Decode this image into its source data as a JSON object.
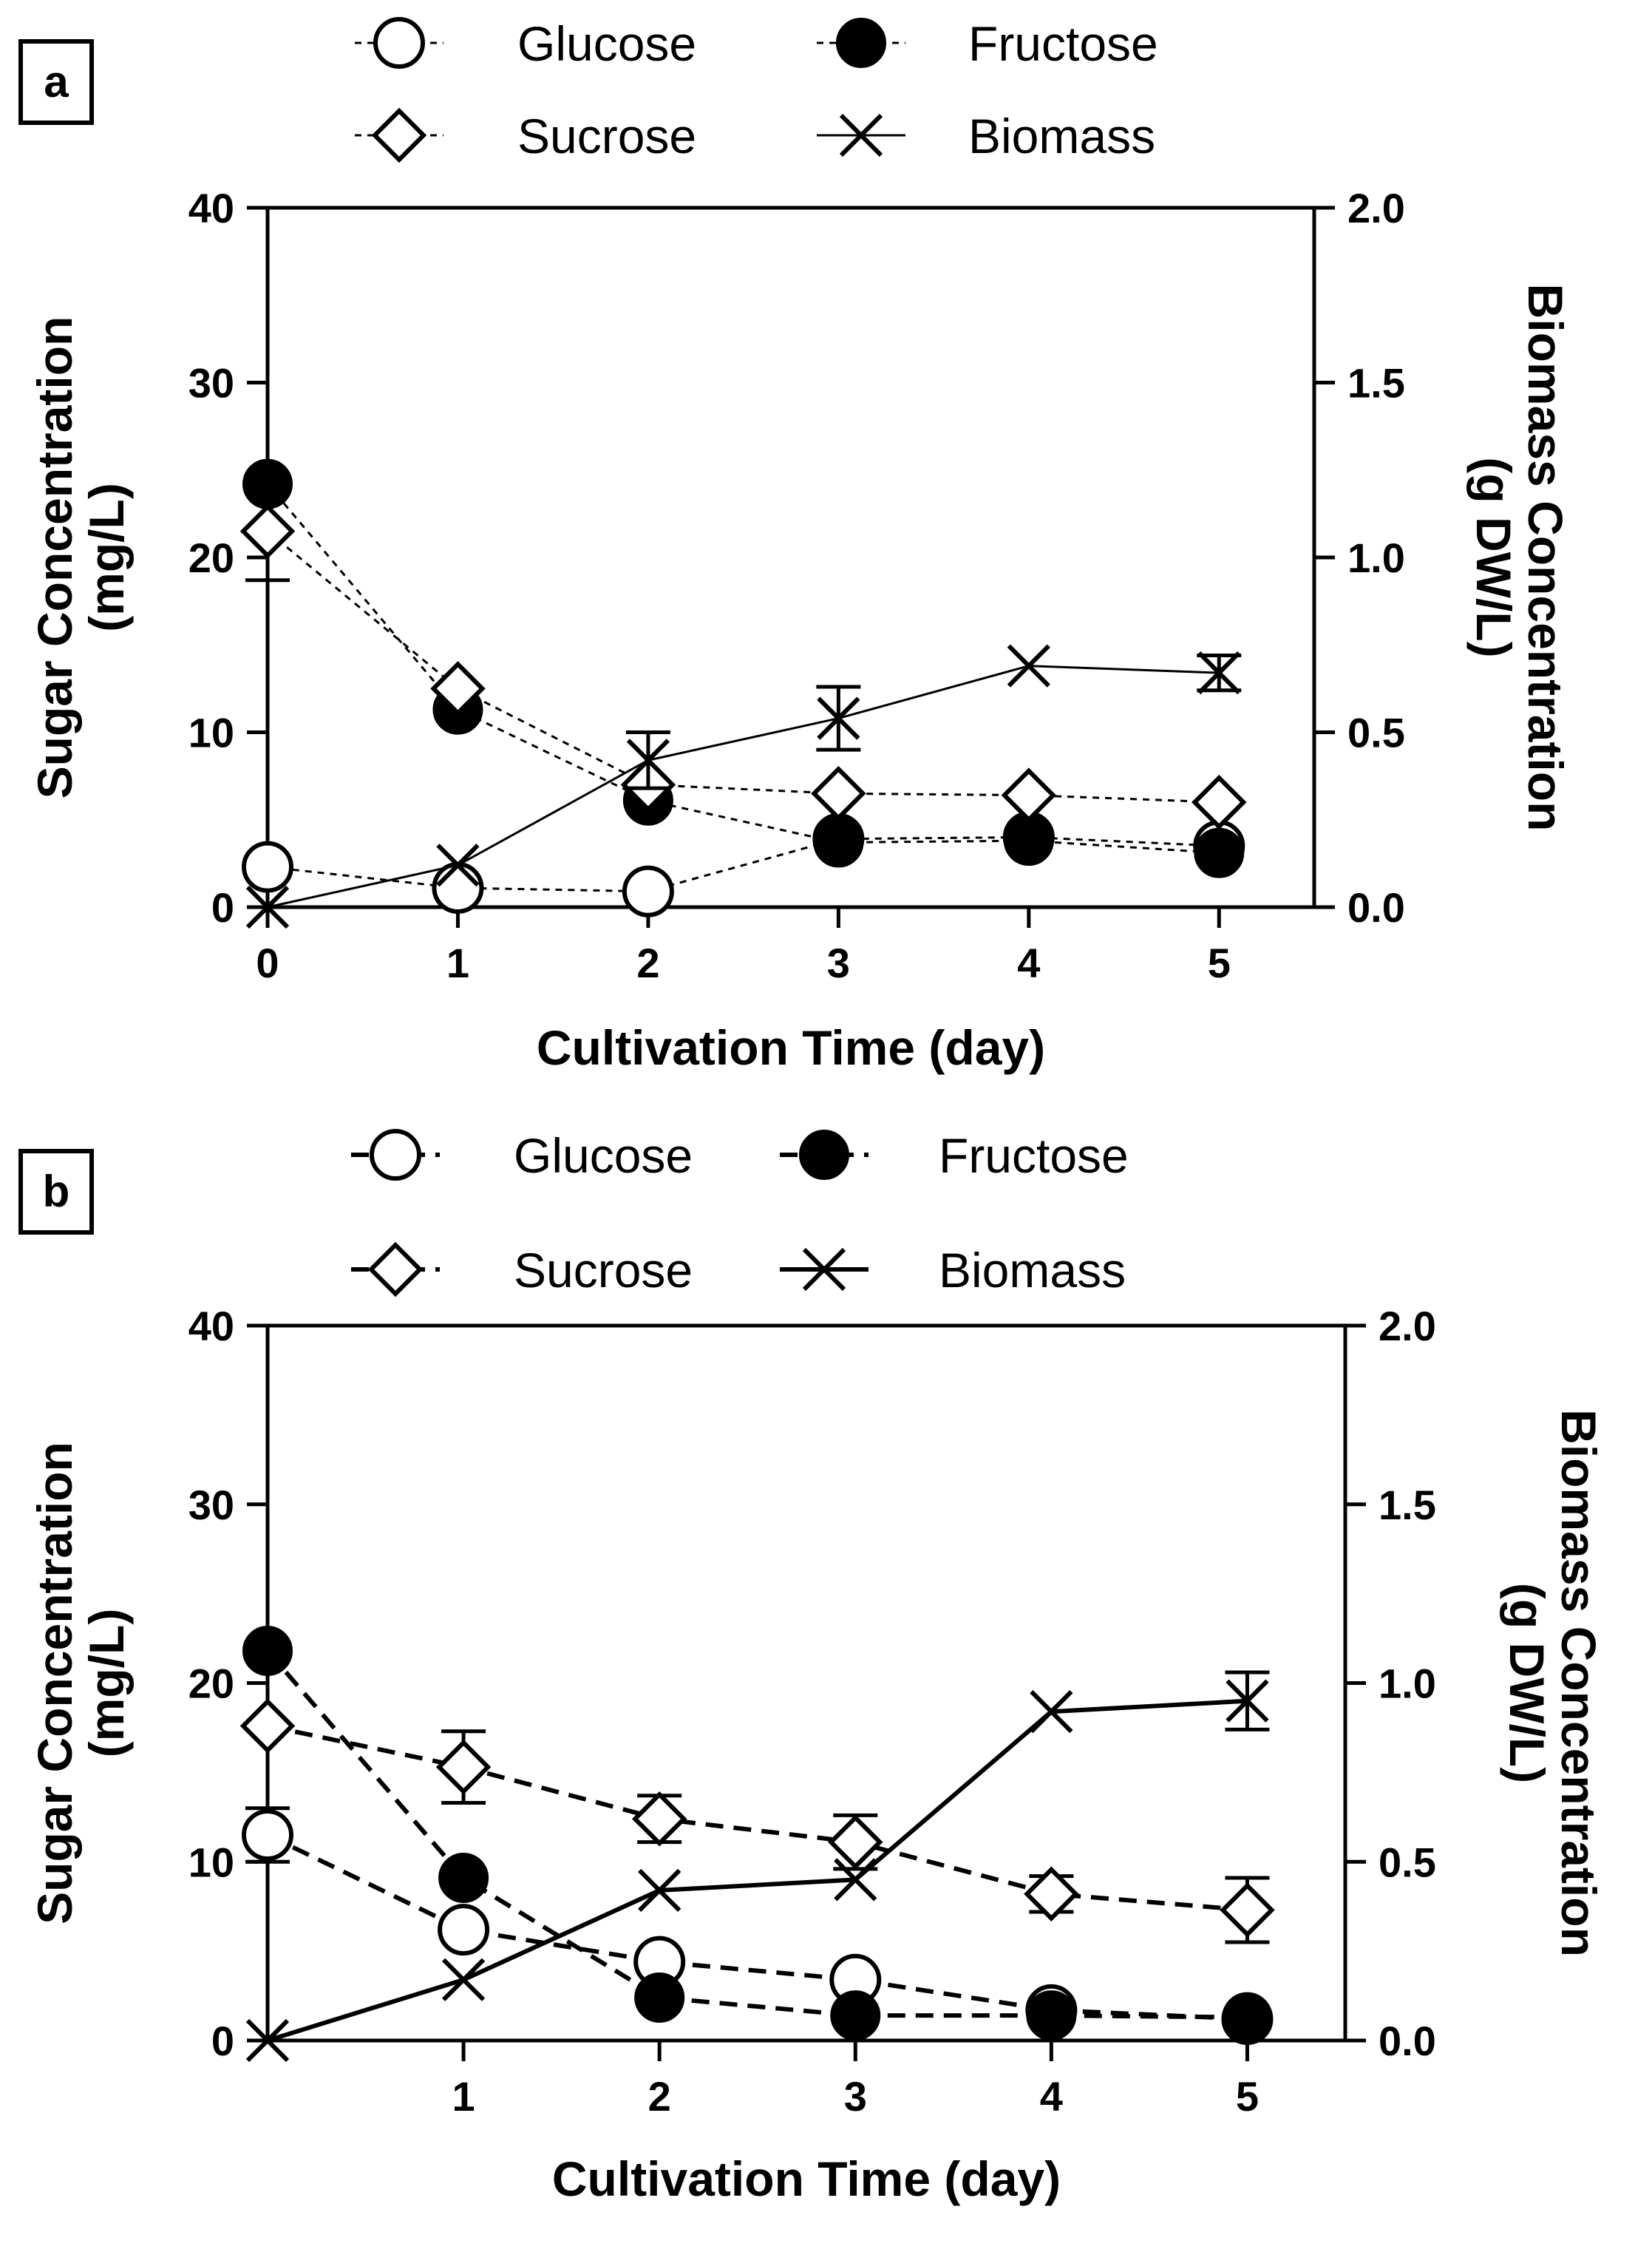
{
  "chart_data": [
    {
      "panel_label": "a",
      "type": "line",
      "xlabel": "Cultivation Time (day)",
      "ylabel_left": [
        "Sugar Concentration",
        "(mg/L)"
      ],
      "ylabel_right": [
        "Biomass Concentration",
        "(g DW/L)"
      ],
      "xlim": [
        0,
        5.5
      ],
      "ylim_left": [
        0,
        40
      ],
      "ylim_right": [
        0,
        2.0
      ],
      "xticks": [
        "0",
        "1",
        "2",
        "3",
        "4",
        "5"
      ],
      "yticks_left": [
        "0",
        "10",
        "20",
        "30",
        "40"
      ],
      "yticks_right": [
        "0.0",
        "0.5",
        "1.0",
        "1.5",
        "2.0"
      ],
      "legend": "top-outside",
      "grid": false,
      "series": [
        {
          "name": "Glucose",
          "axis": "left",
          "marker": "open-circle",
          "line": "dotted",
          "x": [
            0,
            1,
            2,
            3,
            4,
            5
          ],
          "y": [
            2.3,
            1.1,
            0.9,
            3.9,
            4.0,
            3.5
          ],
          "err": [
            0,
            0,
            0,
            0,
            0,
            0
          ]
        },
        {
          "name": "Fructose",
          "axis": "left",
          "marker": "filled-circle",
          "line": "dotted",
          "x": [
            0,
            1,
            2,
            3,
            4,
            5
          ],
          "y": [
            24.2,
            11.3,
            6.1,
            3.7,
            3.8,
            3.1
          ],
          "err": [
            0,
            0,
            0,
            0,
            0,
            0
          ]
        },
        {
          "name": "Sucrose",
          "axis": "left",
          "marker": "open-diamond",
          "line": "dotted",
          "x": [
            0,
            1,
            2,
            3,
            4,
            5
          ],
          "y": [
            21.5,
            12.5,
            7.0,
            6.5,
            6.4,
            6.0
          ],
          "err": [
            2.8,
            0,
            0,
            0,
            0,
            0
          ]
        },
        {
          "name": "Biomass",
          "axis": "right",
          "marker": "x",
          "line": "solid",
          "x": [
            0,
            1,
            2,
            3,
            4,
            5
          ],
          "y": [
            0.0,
            0.12,
            0.42,
            0.54,
            0.69,
            0.67
          ],
          "err": [
            0,
            0,
            0.08,
            0.09,
            0,
            0.05
          ]
        }
      ]
    },
    {
      "panel_label": "b",
      "type": "line",
      "xlabel": "Cultivation Time (day)",
      "ylabel_left": [
        "Sugar Concentration",
        "(mg/L)"
      ],
      "ylabel_right": [
        "Biomass Concentration",
        "(g DW/L)"
      ],
      "xlim": [
        0,
        5.5
      ],
      "ylim_left": [
        0,
        40
      ],
      "ylim_right": [
        0,
        2.0
      ],
      "xticks": [
        "1",
        "2",
        "3",
        "4",
        "5"
      ],
      "yticks_left": [
        "0",
        "10",
        "20",
        "30",
        "40"
      ],
      "yticks_right": [
        "0.0",
        "0.5",
        "1.0",
        "1.5",
        "2.0"
      ],
      "legend": "top-outside",
      "grid": false,
      "series": [
        {
          "name": "Glucose",
          "axis": "left",
          "marker": "open-circle",
          "line": "dashed",
          "x": [
            0,
            1,
            2,
            3,
            4,
            5
          ],
          "y": [
            11.5,
            6.2,
            4.4,
            3.4,
            1.7,
            1.2
          ],
          "err": [
            1.5,
            0,
            0,
            0,
            0,
            0
          ]
        },
        {
          "name": "Fructose",
          "axis": "left",
          "marker": "filled-circle",
          "line": "dashed",
          "x": [
            0,
            1,
            2,
            3,
            4,
            5
          ],
          "y": [
            21.8,
            9.1,
            2.4,
            1.4,
            1.4,
            1.3
          ],
          "err": [
            0,
            0,
            0,
            0,
            0,
            0
          ]
        },
        {
          "name": "Sucrose",
          "axis": "left",
          "marker": "open-diamond",
          "line": "dashed",
          "x": [
            0,
            1,
            2,
            3,
            4,
            5
          ],
          "y": [
            17.6,
            15.3,
            12.4,
            11.1,
            8.2,
            7.3
          ],
          "err": [
            0,
            2.0,
            1.3,
            1.5,
            1.0,
            1.8
          ]
        },
        {
          "name": "Biomass",
          "axis": "right",
          "marker": "x",
          "line": "solid",
          "x": [
            0,
            1,
            2,
            3,
            4,
            5
          ],
          "y": [
            0.0,
            0.17,
            0.42,
            0.45,
            0.92,
            0.95
          ],
          "err": [
            0,
            0,
            0,
            0,
            0,
            0.08
          ]
        }
      ]
    }
  ]
}
